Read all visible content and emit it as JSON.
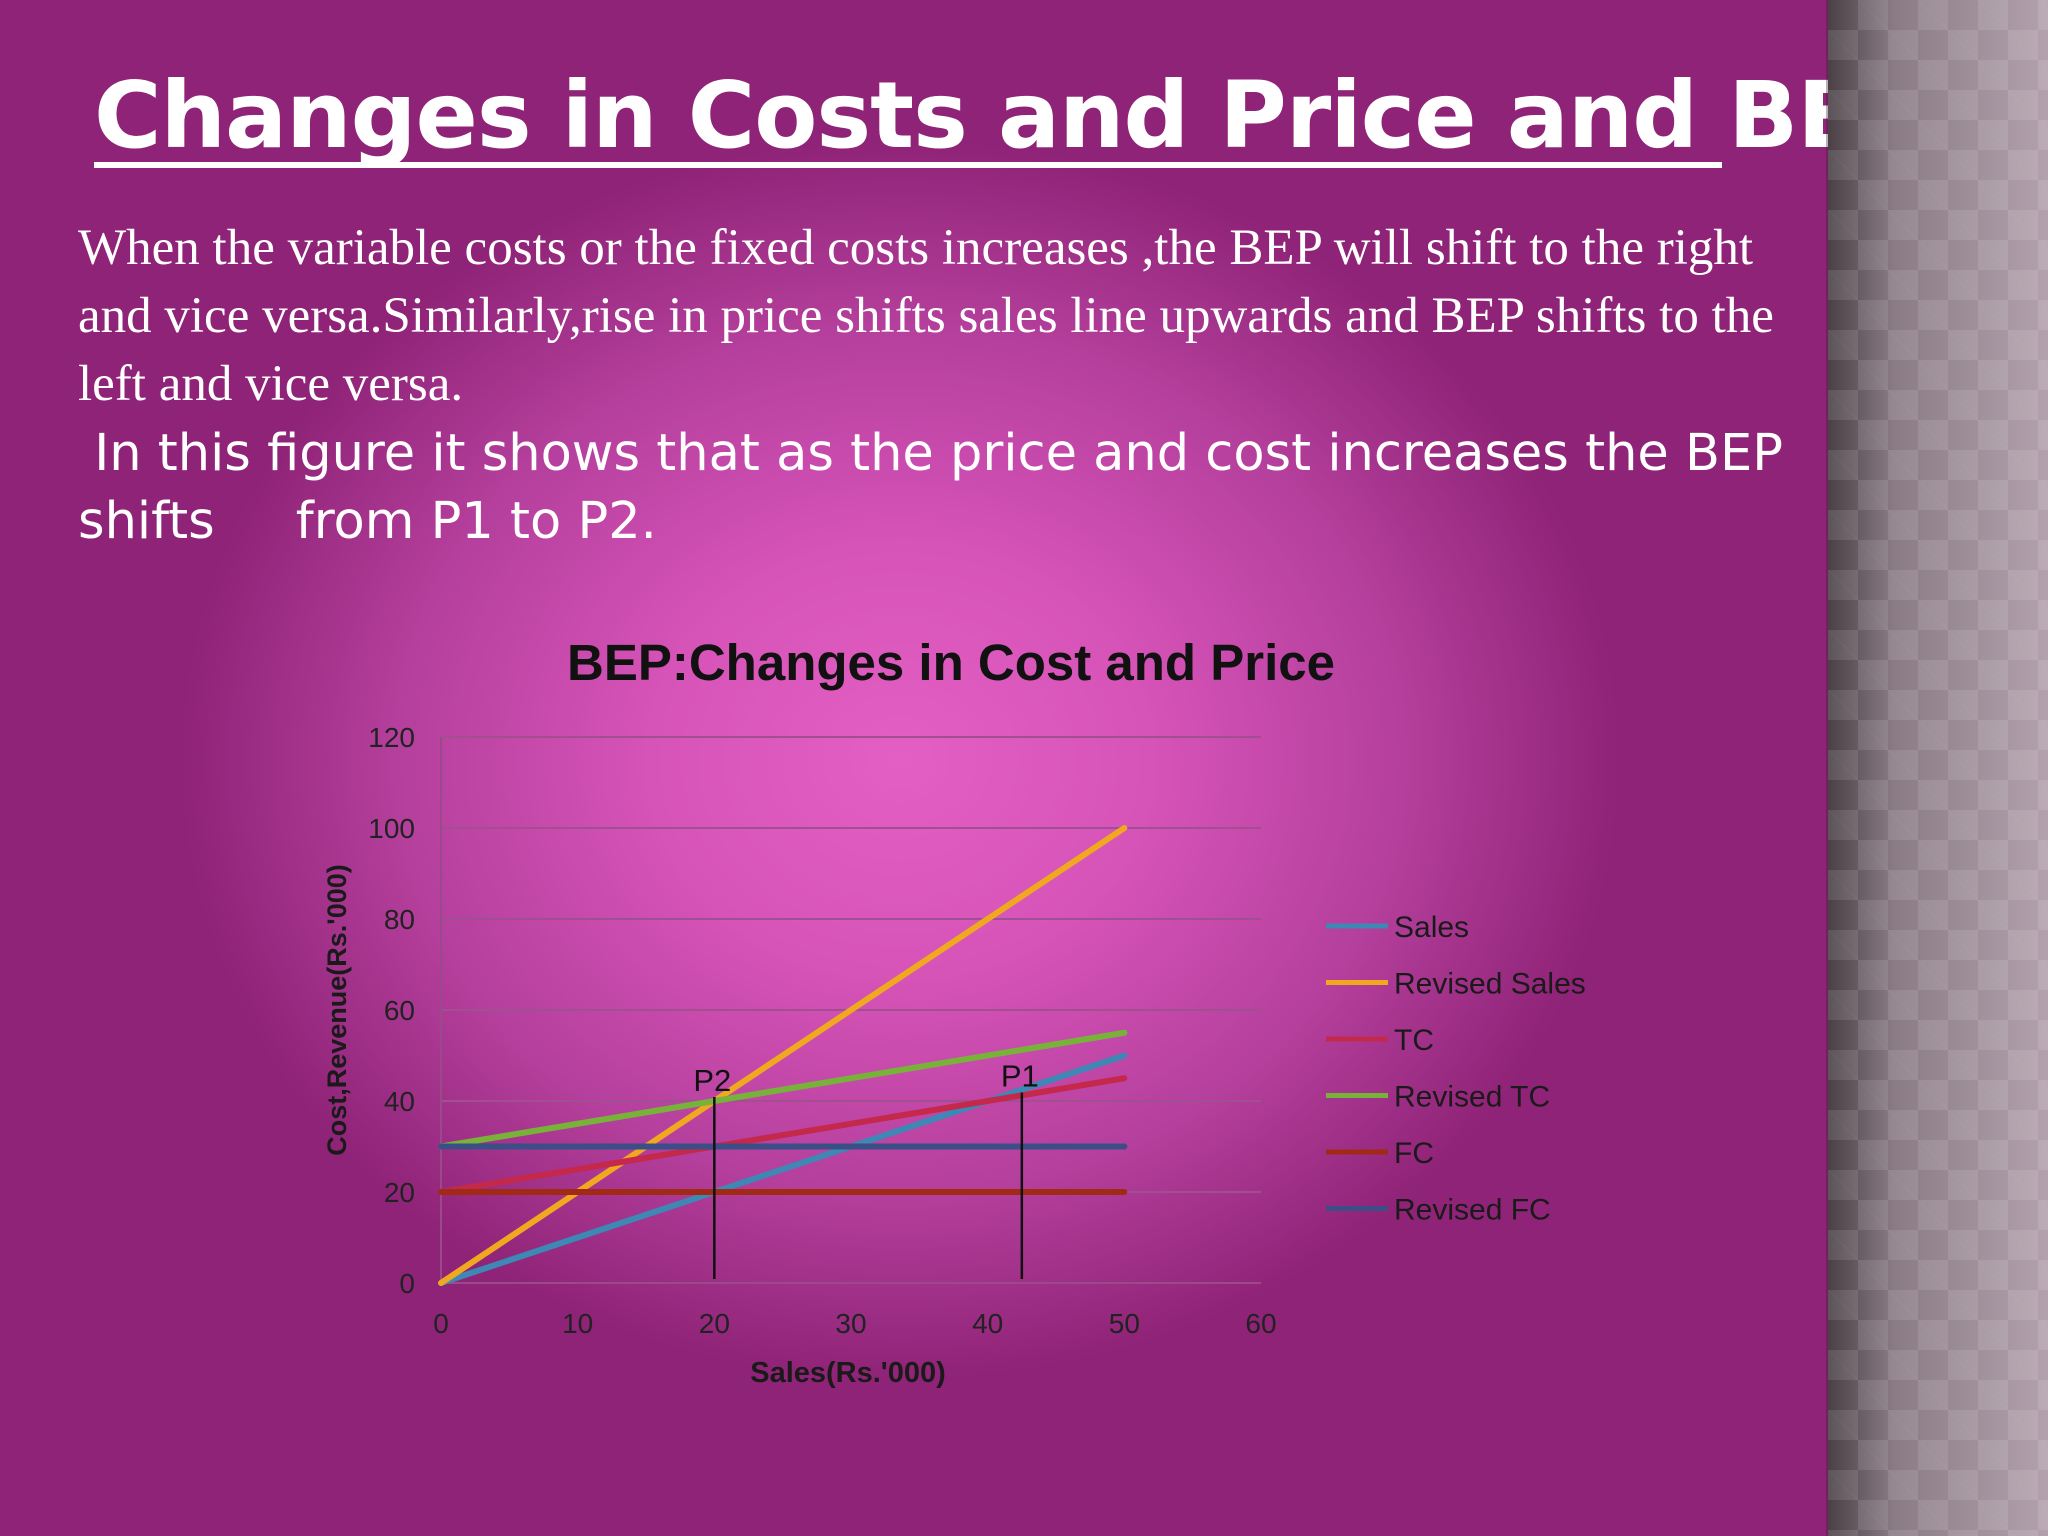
{
  "slide": {
    "title": "Changes in Costs and Price and BEP",
    "paragraph1": "When the variable costs or the fixed costs increases ,the BEP will shift to the right and vice versa.Similarly,rise in price shifts sales line upwards and BEP shifts to the left and vice versa.",
    "paragraph2": " In this figure it shows that as the price and cost increases the BEP shifts     from P1 to P2."
  },
  "chart_data": {
    "type": "line",
    "title": "BEP:Changes in Cost and Price",
    "xlabel": "Sales(Rs.'000)",
    "ylabel": "Cost,Revenue(Rs.'000)",
    "xlim": [
      0,
      60
    ],
    "ylim": [
      0,
      120
    ],
    "xticks": [
      0,
      10,
      20,
      30,
      40,
      50,
      60
    ],
    "yticks": [
      0,
      20,
      40,
      60,
      80,
      100,
      120
    ],
    "grid": true,
    "legend_position": "right",
    "x": [
      0,
      50
    ],
    "series": [
      {
        "name": "Sales",
        "color": "#3d88b4",
        "values": [
          0,
          50
        ]
      },
      {
        "name": "Revised Sales",
        "color": "#f0a820",
        "values": [
          0,
          100
        ]
      },
      {
        "name": "TC",
        "color": "#c4294c",
        "values": [
          20,
          45
        ]
      },
      {
        "name": "Revised TC",
        "color": "#78b23a",
        "values": [
          30,
          55
        ]
      },
      {
        "name": "FC",
        "color": "#a12a16",
        "values": [
          20,
          20
        ]
      },
      {
        "name": "Revised FC",
        "color": "#3b4f86",
        "values": [
          30,
          30
        ]
      }
    ],
    "annotations": [
      {
        "label": "P2",
        "x": 20,
        "y": 40,
        "drop_to": 0
      },
      {
        "label": "P1",
        "x": 42.5,
        "y": 41,
        "drop_to": 0
      }
    ]
  }
}
